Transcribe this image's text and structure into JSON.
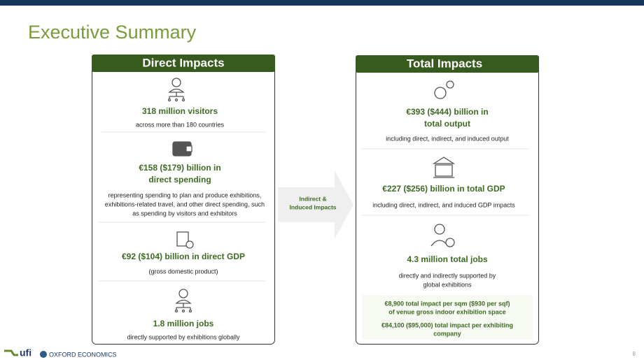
{
  "header": {
    "title": "Executive Summary"
  },
  "direct": {
    "title": "Direct Impacts",
    "items": [
      {
        "heading": [
          "318 million visitors"
        ],
        "description": [
          "across more than 180 countries"
        ]
      },
      {
        "heading": [
          "€158 ($179) billion in",
          "direct spending"
        ],
        "description": [
          "representing spending to plan and produce exhibitions,",
          "exhibitions-related travel, and other direct spending, such",
          "as spending by visitors and exhibitors"
        ]
      },
      {
        "heading": [
          "€92 ($104) billion in direct GDP"
        ],
        "description": [
          "(gross domestic product)"
        ]
      },
      {
        "heading": [
          "1.8 million jobs"
        ],
        "description": [
          "directly supported by exhibitions  globally"
        ]
      }
    ]
  },
  "arrow": {
    "label": [
      "Indirect &",
      "Induced Impacts"
    ]
  },
  "total": {
    "title": "Total Impacts",
    "items": [
      {
        "heading": [
          "€393 ($444)  billion in",
          "total output"
        ],
        "description": [
          "including direct, indirect, and induced output"
        ]
      },
      {
        "heading": [
          "€227 ($256) billion in total GDP"
        ],
        "description": [
          "including direct, indirect, and induced GDP impacts"
        ]
      },
      {
        "heading": [
          "4.3 million total jobs"
        ],
        "description": [
          "directly and indirectly supported by",
          "global exhibitions"
        ]
      }
    ],
    "metrics": [
      [
        "€8,900 total impact per sqm ($930 per sqf)",
        "of venue gross indoor exhibition space"
      ],
      [
        "€84,100 ($95,000) total impact per exhibiting",
        "company"
      ]
    ]
  },
  "footer": {
    "logo_1": "ufi",
    "logo_2": "OXFORD ECONOMICS",
    "page": "8"
  }
}
